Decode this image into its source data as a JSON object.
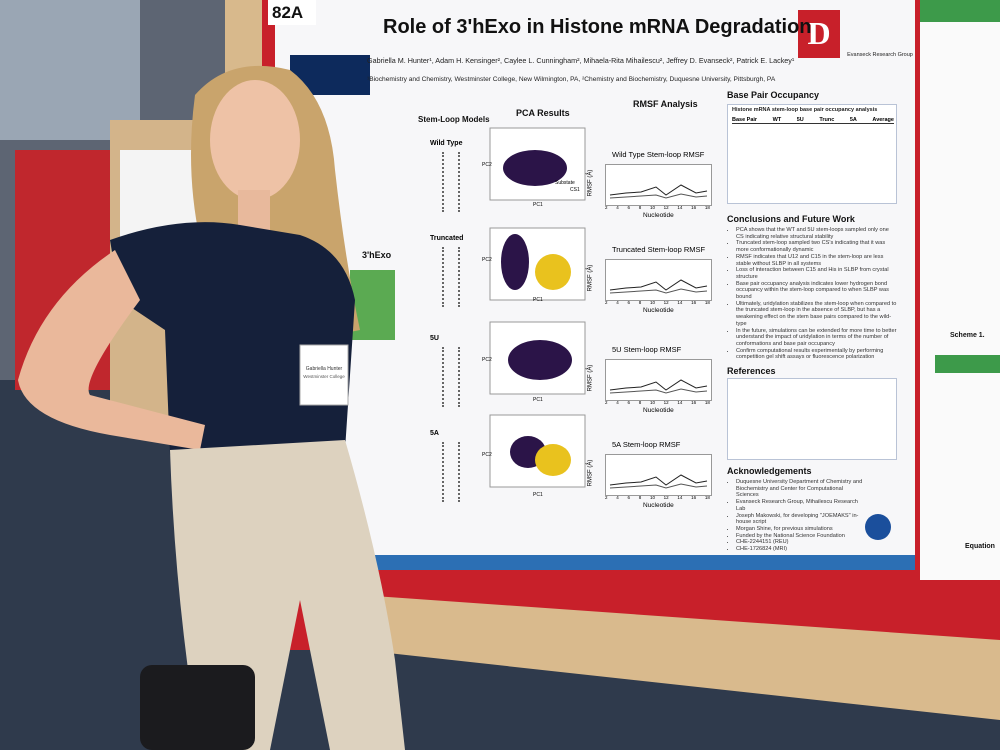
{
  "booth_number": "82A",
  "poster": {
    "title": "Role of 3'hExo in Histone mRNA Degradation",
    "authors": "Gabriella M. Hunter¹, Adam H. Kensinger², Caylee L. Cunningham², Mihaela-Rita Mihailescu², Jeffrey D. Evanseck², Patrick E. Lackey¹",
    "affiliations": "¹Biochemistry and Chemistry, Westminster College, New Wilmington, PA, ²Chemistry and Biochemistry, Duquesne University, Pittsburgh, PA",
    "group_logo": "Evanseck Research Group",
    "headings": {
      "stem_loop_models": "Stem-Loop Models",
      "pca_results": "PCA Results",
      "rmsf_analysis": "RMSF Analysis",
      "base_pair_occupancy": "Base Pair Occupancy",
      "conclusions": "Conclusions and Future Work",
      "references": "References",
      "acknowledgements": "Acknowledgements"
    },
    "left_label": "3'hExo",
    "rows": [
      {
        "model": "Wild Type",
        "rmsf_title": "Wild Type Stem-loop RMSF"
      },
      {
        "model": "Truncated",
        "rmsf_title": "Truncated Stem-loop RMSF"
      },
      {
        "model": "5U",
        "rmsf_title": "5U Stem-loop RMSF"
      },
      {
        "model": "5A",
        "rmsf_title": "5A Stem-loop RMSF"
      }
    ],
    "rmsf_y_label": "RMSF (Å)",
    "rmsf_x_label": "Nucleotide",
    "nucleotide_ticks": [
      2,
      4,
      6,
      8,
      10,
      12,
      14,
      16,
      18
    ],
    "pca_labels": {
      "x": "PC1",
      "y": "PC2",
      "substate": "Substate",
      "cs": "CS1"
    },
    "table_title": "Histone mRNA stem-loop base pair occupancy analysis",
    "table_header": [
      "Base Pair",
      "WT",
      "5U",
      "Trunc",
      "5A",
      "Average"
    ],
    "conclusions": [
      "PCA shows that the WT and 5U stem-loops sampled only one CS indicating relative structural stability",
      "Truncated stem-loop sampled two CS's indicating that it was more conformationally dynamic",
      "RMSF indicates that U12 and C15 in the stem-loop are less stable without SLBP in all systems",
      "Loss of interaction between C15 and His in SLBP from crystal structure",
      "Base pair occupancy analysis indicates lower hydrogen bond occupancy within the stem-loop compared to when SLBP was bound",
      "Ultimately, uridylation stabilizes the stem-loop when compared to the truncated stem-loop in the absence of SLBP, but has a weakening effect on the stem base pairs compared to the wild-type",
      "In the future, simulations can be extended for more time to better understand the impact of uridylation in terms of the number of conformations and base pair occupancy",
      "Confirm computational results experimentally by performing competition gel shift assays or fluorescence polarization"
    ],
    "acknowledgements": [
      "Duquesne University Department of Chemistry and Biochemistry and Center for Computational Sciences",
      "Evanseck Research Group, Mihailescu Research Lab",
      "Joseph Makowski, for developing \"JOEMAKS\" in-house script",
      "Morgan Shine, for previous simulations",
      "Funded by the National Science Foundation",
      "CHE-2244151 (REU)",
      "CHE-1726824 (MRI)"
    ]
  },
  "name_badge": {
    "name": "Gabriella Hunter",
    "school": "Westminster College"
  },
  "neighbor_poster": {
    "caption": "Scheme 1.",
    "equation": "Equation"
  }
}
